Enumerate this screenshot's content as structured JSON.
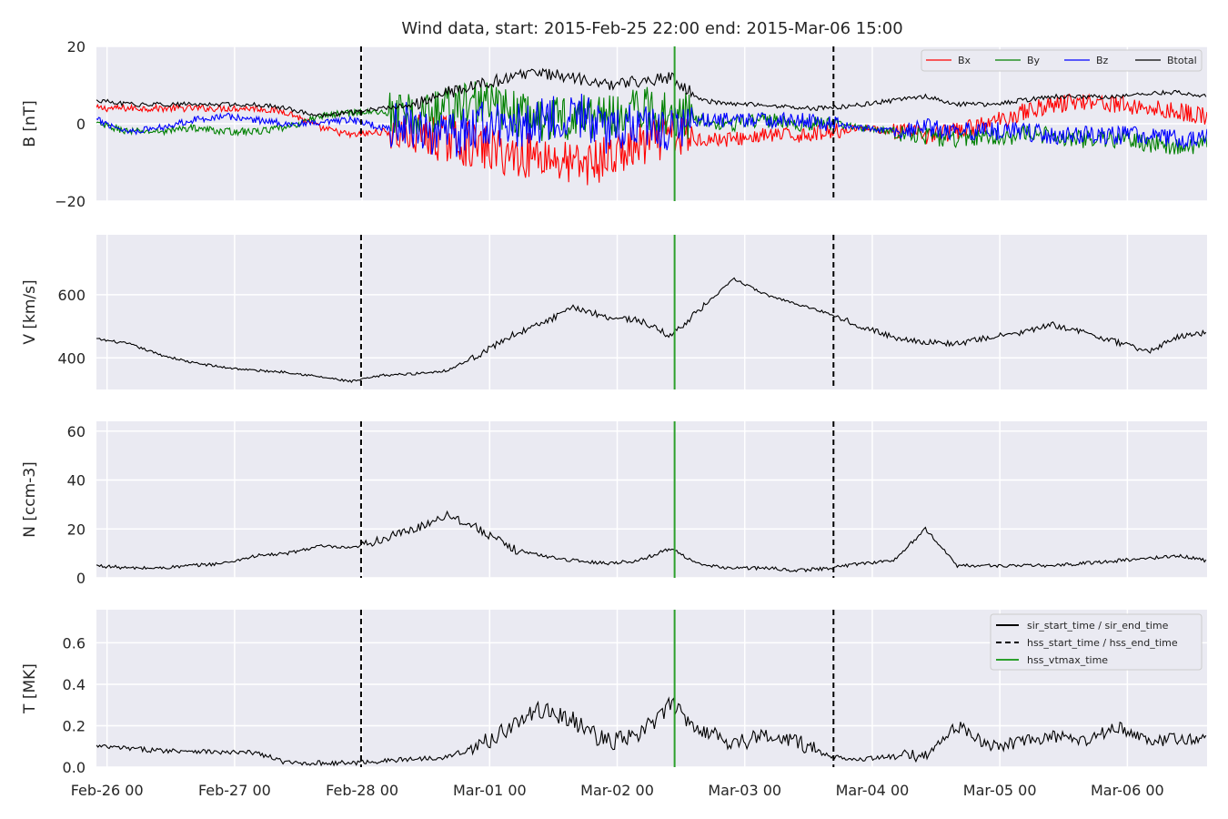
{
  "chart_data": {
    "type": "line",
    "title": "Wind data, start: 2015-Feb-25 22:00  end: 2015-Mar-06 15:00",
    "x_axis": {
      "unit": "hours since 2015-Feb-25 22:00",
      "range": [
        0,
        209
      ],
      "tick_hours": [
        2,
        26,
        50,
        74,
        98,
        122,
        146,
        170,
        194
      ],
      "tick_labels": [
        "Feb-26 00",
        "Feb-27 00",
        "Feb-28 00",
        "Mar-01 00",
        "Mar-02 00",
        "Mar-03 00",
        "Mar-04 00",
        "Mar-05 00",
        "Mar-06 00"
      ]
    },
    "event_lines": [
      {
        "label": "hss_start_time / hss_end_time",
        "style": "dashed",
        "color": "#000000",
        "x_hours": [
          49.8,
          138.7
        ]
      },
      {
        "label": "hss_vtmax_time",
        "style": "solid",
        "color": "#2ca02c",
        "x_hours": [
          108.8
        ]
      }
    ],
    "event_legend": [
      {
        "label": "sir_start_time / sir_end_time",
        "style": "solid",
        "color": "#000000"
      },
      {
        "label": "hss_start_time / hss_end_time",
        "style": "dashed",
        "color": "#000000"
      },
      {
        "label": "hss_vtmax_time",
        "style": "solid",
        "color": "#2ca02c"
      }
    ],
    "panels": [
      {
        "ylabel": "B [nT]",
        "ylim": [
          -20,
          20
        ],
        "yticks": [
          -20,
          0,
          20
        ],
        "grid": true,
        "legend": "top-right",
        "series": [
          {
            "name": "Bx",
            "color": "#ff0000",
            "x": [
              0,
              6,
              12,
              18,
              24,
              30,
              36,
              42,
              48,
              54,
              60,
              66,
              72,
              78,
              84,
              90,
              96,
              102,
              108,
              114,
              120,
              126,
              132,
              138,
              144,
              150,
              156,
              162,
              168,
              174,
              180,
              186,
              192,
              198,
              204,
              209
            ],
            "y": [
              4,
              4,
              4,
              4,
              4,
              4,
              3,
              -1,
              -3,
              -2,
              -3,
              -4,
              -6,
              -8,
              -8,
              -11,
              -9,
              -6,
              -3,
              -4,
              -4,
              -3,
              -3,
              -2,
              -1,
              -2,
              -3,
              -2,
              0,
              3,
              5,
              6,
              5,
              4,
              3,
              2
            ]
          },
          {
            "name": "By",
            "color": "#008000",
            "x": [
              0,
              6,
              12,
              18,
              24,
              30,
              36,
              42,
              48,
              54,
              60,
              66,
              72,
              78,
              84,
              90,
              96,
              102,
              108,
              114,
              120,
              126,
              132,
              138,
              144,
              150,
              156,
              162,
              168,
              174,
              180,
              186,
              192,
              198,
              204,
              209
            ],
            "y": [
              0,
              -2,
              -2,
              -1,
              -2,
              -2,
              -1,
              2,
              3,
              3,
              2,
              4,
              6,
              3,
              1,
              2,
              2,
              4,
              3,
              1,
              0,
              1,
              0,
              0,
              -1,
              -2,
              -3,
              -4,
              -3,
              -3,
              -3,
              -4,
              -4,
              -5,
              -6,
              -5
            ]
          },
          {
            "name": "Bz",
            "color": "#0000ff",
            "x": [
              0,
              6,
              12,
              18,
              24,
              30,
              36,
              42,
              48,
              54,
              60,
              66,
              72,
              78,
              84,
              90,
              96,
              102,
              108,
              114,
              120,
              126,
              132,
              138,
              144,
              150,
              156,
              162,
              168,
              174,
              180,
              186,
              192,
              198,
              204,
              209
            ],
            "y": [
              1,
              -2,
              -1,
              1,
              2,
              1,
              0,
              0,
              1,
              -1,
              0,
              -4,
              0,
              -1,
              1,
              3,
              -2,
              0,
              -1,
              1,
              1,
              1,
              1,
              0,
              -1,
              -2,
              -1,
              -2,
              -2,
              -2,
              -3,
              -3,
              -3,
              -3,
              -4,
              -3
            ]
          },
          {
            "name": "Btotal",
            "color": "#000000",
            "x": [
              0,
              6,
              12,
              18,
              24,
              30,
              36,
              42,
              48,
              54,
              60,
              66,
              72,
              78,
              84,
              90,
              96,
              102,
              108,
              114,
              120,
              126,
              132,
              138,
              144,
              150,
              156,
              162,
              168,
              174,
              180,
              186,
              192,
              198,
              204,
              209
            ],
            "y": [
              6,
              5,
              5,
              5,
              5,
              5,
              4,
              2,
              3,
              4,
              5,
              8,
              10,
              12,
              13,
              12,
              10,
              11,
              12,
              6,
              5,
              5,
              4,
              4,
              5,
              6,
              7,
              5,
              5,
              6,
              7,
              7,
              7,
              8,
              8,
              7
            ]
          }
        ]
      },
      {
        "ylabel": "V [km/s]",
        "ylim": [
          300,
          790
        ],
        "yticks": [
          400,
          600
        ],
        "grid": true,
        "series": [
          {
            "name": "V",
            "color": "#000000",
            "x": [
              0,
              6,
              12,
              18,
              24,
              30,
              36,
              42,
              48,
              54,
              60,
              66,
              72,
              78,
              84,
              90,
              96,
              102,
              108,
              114,
              120,
              126,
              132,
              138,
              144,
              150,
              156,
              162,
              168,
              174,
              180,
              186,
              192,
              198,
              204,
              209
            ],
            "y": [
              460,
              445,
              410,
              385,
              370,
              360,
              355,
              340,
              325,
              345,
              350,
              360,
              410,
              470,
              510,
              560,
              530,
              520,
              470,
              560,
              650,
              600,
              570,
              540,
              500,
              465,
              450,
              445,
              465,
              480,
              505,
              480,
              450,
              420,
              470,
              480
            ]
          }
        ]
      },
      {
        "ylabel": "N [ccm-3]",
        "ylim": [
          0,
          64
        ],
        "yticks": [
          0,
          20,
          40,
          60
        ],
        "grid": true,
        "series": [
          {
            "name": "N",
            "color": "#000000",
            "x": [
              0,
              6,
              12,
              18,
              24,
              30,
              36,
              42,
              48,
              54,
              60,
              66,
              72,
              78,
              84,
              90,
              96,
              102,
              108,
              114,
              120,
              126,
              132,
              138,
              144,
              150,
              156,
              162,
              168,
              174,
              180,
              186,
              192,
              198,
              204,
              209
            ],
            "y": [
              5,
              4,
              4,
              5,
              6,
              9,
              10,
              13,
              12,
              16,
              20,
              26,
              20,
              12,
              9,
              7,
              6,
              7,
              12,
              5,
              4,
              4,
              3,
              4,
              6,
              7,
              20,
              5,
              5,
              5,
              5,
              6,
              7,
              8,
              9,
              7
            ]
          }
        ]
      },
      {
        "ylabel": "T [MK]",
        "ylim": [
          0,
          0.76
        ],
        "yticks": [
          0.0,
          0.2,
          0.4,
          0.6
        ],
        "grid": true,
        "legend": "top-right",
        "series": [
          {
            "name": "T",
            "color": "#000000",
            "x": [
              0,
              6,
              12,
              18,
              24,
              30,
              36,
              42,
              48,
              54,
              60,
              66,
              72,
              78,
              84,
              90,
              96,
              102,
              108,
              114,
              120,
              126,
              132,
              138,
              144,
              150,
              156,
              162,
              168,
              174,
              180,
              186,
              192,
              198,
              204,
              209
            ],
            "y": [
              0.1,
              0.09,
              0.08,
              0.08,
              0.07,
              0.07,
              0.02,
              0.02,
              0.02,
              0.03,
              0.04,
              0.05,
              0.1,
              0.2,
              0.28,
              0.22,
              0.12,
              0.15,
              0.3,
              0.18,
              0.12,
              0.15,
              0.12,
              0.05,
              0.04,
              0.05,
              0.06,
              0.2,
              0.1,
              0.12,
              0.15,
              0.12,
              0.2,
              0.12,
              0.14,
              0.13
            ]
          }
        ]
      }
    ]
  }
}
